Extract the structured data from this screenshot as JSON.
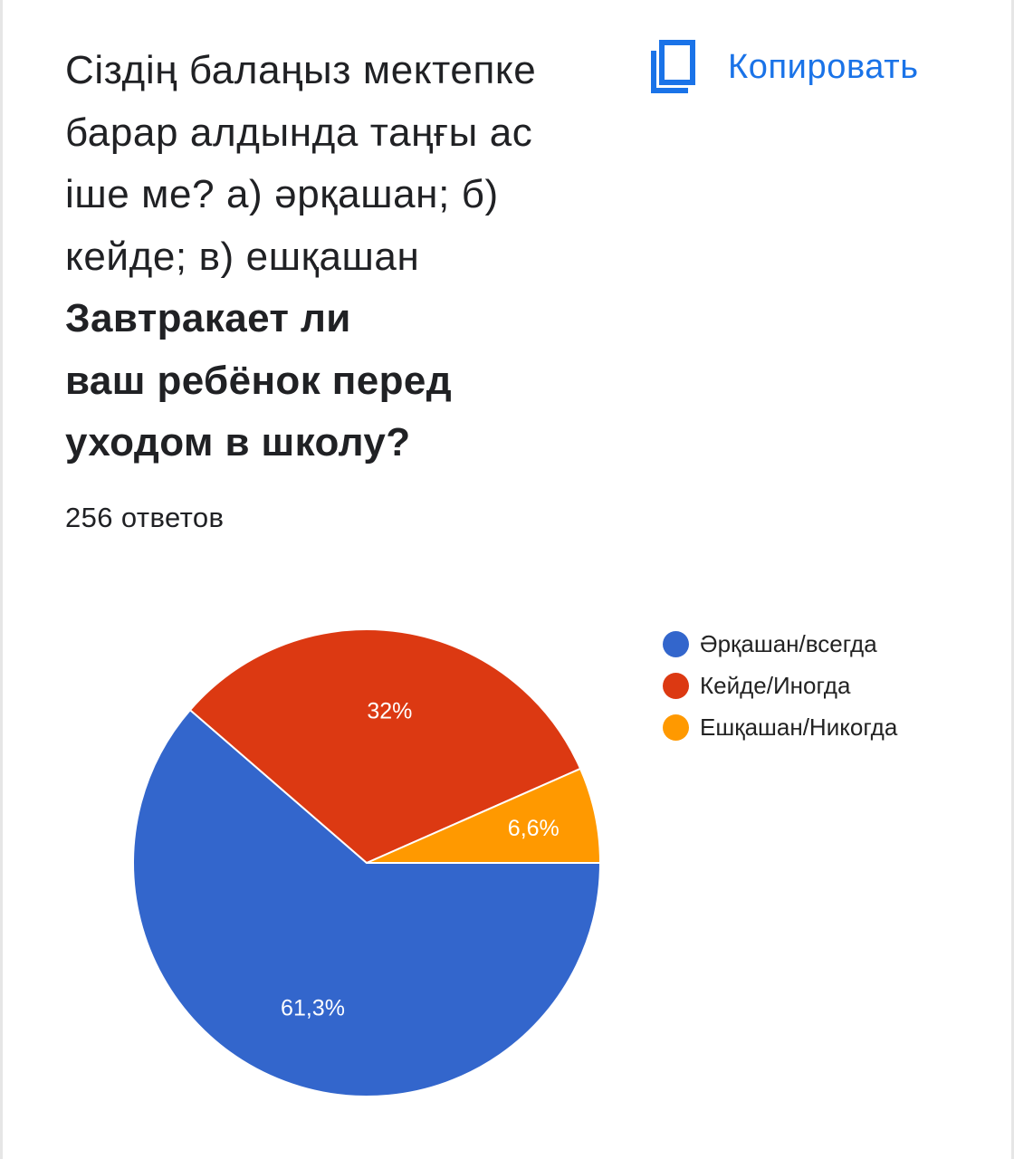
{
  "question": {
    "lines_kz": [
      "Сіздің балаңыз мектепке",
      "барар алдында таңғы ас",
      "іше ме? а) әрқашан; б)",
      "кейде; в) ешқашан"
    ],
    "lines_ru": [
      "Завтракает ли",
      "ваш ребёнок перед",
      "уходом в школу?"
    ]
  },
  "copy_button": {
    "label": "Копировать",
    "icon": "copy-icon",
    "color": "#1a73e8"
  },
  "responses_count": "256 ответов",
  "chart_data": {
    "type": "pie",
    "categories": [
      "Әрқашан/всегда",
      "Кейде/Иногда",
      "Ешқашан/Никогда"
    ],
    "values": [
      61.3,
      32,
      6.6
    ],
    "data_labels": [
      "61,3%",
      "32%",
      "6,6%"
    ],
    "colors": [
      "#3366cc",
      "#dc3912",
      "#ff9900"
    ],
    "legend_position": "right"
  }
}
